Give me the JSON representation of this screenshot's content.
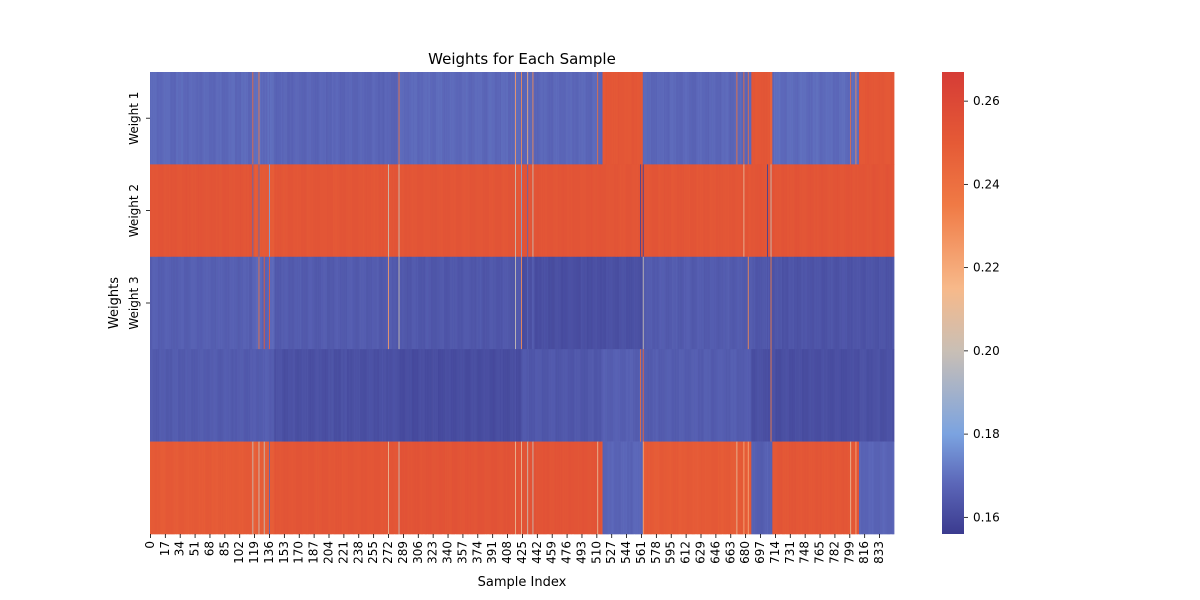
{
  "chart_data": {
    "type": "heatmap",
    "title": "Weights for Each Sample",
    "xlabel": "Sample Index",
    "ylabel": "Weights",
    "row_labels": [
      "Weight 1",
      "Weight 2",
      "Weight 3",
      "",
      ""
    ],
    "x_ticks": [
      0,
      17,
      34,
      51,
      68,
      85,
      102,
      119,
      136,
      153,
      170,
      187,
      204,
      221,
      238,
      255,
      272,
      289,
      306,
      323,
      340,
      357,
      374,
      391,
      408,
      425,
      442,
      459,
      476,
      493,
      510,
      527,
      544,
      561,
      578,
      595,
      612,
      629,
      646,
      663,
      680,
      697,
      714,
      731,
      748,
      765,
      782,
      799,
      816,
      833
    ],
    "n_samples": 850,
    "colorbar": {
      "min": 0.156,
      "max": 0.267,
      "ticks": [
        0.16,
        0.18,
        0.2,
        0.22,
        0.24,
        0.26
      ],
      "tick_labels": [
        "0.16",
        "0.18",
        "0.20",
        "0.22",
        "0.24",
        "0.26"
      ]
    },
    "colormap": [
      {
        "v": 0.156,
        "color": "#3b3b8f"
      },
      {
        "v": 0.168,
        "color": "#5b66b8"
      },
      {
        "v": 0.18,
        "color": "#7ba3e0"
      },
      {
        "v": 0.2,
        "color": "#c9bfb5"
      },
      {
        "v": 0.215,
        "color": "#f7b98a"
      },
      {
        "v": 0.235,
        "color": "#f07a45"
      },
      {
        "v": 0.25,
        "color": "#e55a36"
      },
      {
        "v": 0.267,
        "color": "#d63c36"
      }
    ],
    "segments": [
      {
        "start": 0,
        "end": 118,
        "values": [
          0.1685,
          0.253,
          0.166,
          0.165,
          0.25
        ]
      },
      {
        "start": 118,
        "end": 142,
        "values": [
          0.169,
          0.25,
          0.168,
          0.1655,
          0.248
        ]
      },
      {
        "start": 142,
        "end": 283,
        "values": [
          0.1675,
          0.2525,
          0.165,
          0.162,
          0.2525
        ]
      },
      {
        "start": 283,
        "end": 425,
        "values": [
          0.1685,
          0.2525,
          0.164,
          0.161,
          0.2535
        ]
      },
      {
        "start": 425,
        "end": 517,
        "values": [
          0.168,
          0.253,
          0.1615,
          0.164,
          0.2535
        ]
      },
      {
        "start": 517,
        "end": 564,
        "values": [
          0.252,
          0.2525,
          0.162,
          0.166,
          0.1675
        ]
      },
      {
        "start": 564,
        "end": 687,
        "values": [
          0.168,
          0.2525,
          0.165,
          0.1655,
          0.25
        ]
      },
      {
        "start": 687,
        "end": 711,
        "values": [
          0.252,
          0.253,
          0.164,
          0.162,
          0.166
        ]
      },
      {
        "start": 711,
        "end": 810,
        "values": [
          0.169,
          0.253,
          0.163,
          0.1615,
          0.252
        ]
      },
      {
        "start": 810,
        "end": 850,
        "values": [
          0.252,
          0.253,
          0.163,
          0.162,
          0.1675
        ]
      }
    ],
    "stripes": [
      {
        "index": 117,
        "values": [
          0.24,
          0.168,
          0.168,
          0.165,
          0.2
        ]
      },
      {
        "index": 124,
        "values": [
          0.235,
          0.168,
          0.24,
          0.165,
          0.2
        ]
      },
      {
        "index": 130,
        "values": [
          0.168,
          0.25,
          0.25,
          0.165,
          0.2
        ]
      },
      {
        "index": 136,
        "values": [
          0.168,
          0.18,
          0.25,
          0.165,
          0.168
        ]
      },
      {
        "index": 272,
        "values": [
          0.168,
          0.2,
          0.225,
          0.162,
          0.21
        ]
      },
      {
        "index": 284,
        "values": [
          0.24,
          0.2,
          0.2,
          0.162,
          0.2
        ]
      },
      {
        "index": 417,
        "values": [
          0.225,
          0.2,
          0.2,
          0.163,
          0.21
        ]
      },
      {
        "index": 424,
        "values": [
          0.23,
          0.18,
          0.23,
          0.163,
          0.21
        ]
      },
      {
        "index": 431,
        "values": [
          0.22,
          0.168,
          0.168,
          0.164,
          0.2
        ]
      },
      {
        "index": 437,
        "values": [
          0.23,
          0.2,
          0.168,
          0.164,
          0.2
        ]
      },
      {
        "index": 511,
        "values": [
          0.24,
          0.252,
          0.161,
          0.164,
          0.21
        ]
      },
      {
        "index": 560,
        "values": [
          0.252,
          0.158,
          0.161,
          0.24,
          0.168
        ]
      },
      {
        "index": 563,
        "values": [
          0.168,
          0.158,
          0.2,
          0.245,
          0.22
        ]
      },
      {
        "index": 670,
        "values": [
          0.24,
          0.252,
          0.165,
          0.165,
          0.21
        ]
      },
      {
        "index": 678,
        "values": [
          0.24,
          0.21,
          0.165,
          0.165,
          0.22
        ]
      },
      {
        "index": 683,
        "values": [
          0.24,
          0.252,
          0.23,
          0.165,
          0.22
        ]
      },
      {
        "index": 705,
        "values": [
          0.252,
          0.158,
          0.163,
          0.162,
          0.168
        ]
      },
      {
        "index": 709,
        "values": [
          0.24,
          0.2,
          0.235,
          0.235,
          0.168
        ]
      },
      {
        "index": 800,
        "values": [
          0.24,
          0.253,
          0.163,
          0.162,
          0.21
        ]
      },
      {
        "index": 806,
        "values": [
          0.23,
          0.253,
          0.163,
          0.162,
          0.22
        ]
      }
    ]
  }
}
